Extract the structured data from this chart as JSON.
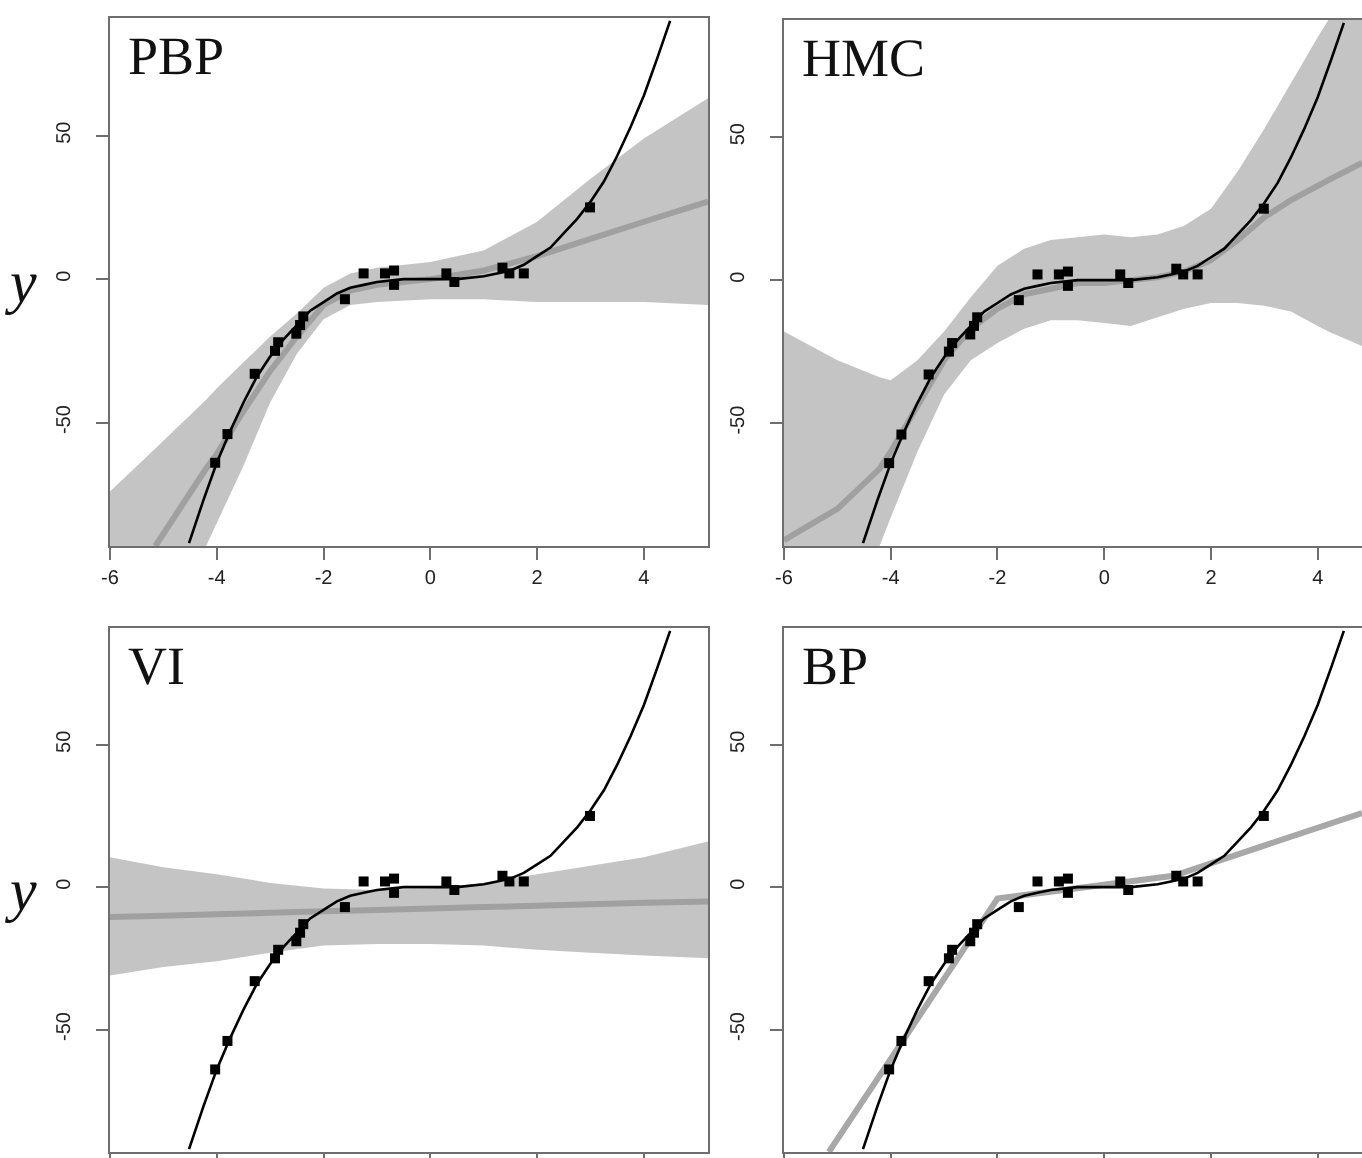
{
  "chart_data": [
    {
      "type": "line",
      "title": "PBP",
      "ylabel": "y",
      "xlim": [
        -6,
        5.2
      ],
      "ylim": [
        -93,
        91
      ],
      "xticks": [
        -6,
        -4,
        -2,
        0,
        2,
        4
      ],
      "yticks": [
        -50,
        0,
        50
      ],
      "series": [
        {
          "color": "#a0a0a0",
          "x": [
            -6,
            -5.15,
            -4.2,
            -4,
            -3.5,
            -3,
            -2.5,
            -2,
            -1.5,
            -1,
            0,
            1,
            2,
            3,
            4,
            5.2
          ],
          "values": [
            null,
            -93,
            -66,
            -61,
            -46,
            -32,
            -20,
            -9,
            -4,
            -2,
            0,
            3,
            8,
            14,
            20,
            27
          ],
          "upper": [
            -74,
            -59,
            -42,
            -38,
            -29,
            -20,
            -12,
            -3,
            2,
            4,
            6,
            10,
            20,
            35,
            49,
            63
          ],
          "lower": [
            -93,
            -93,
            -93,
            -85,
            -65,
            -43,
            -26,
            -14,
            -9,
            -8,
            -7,
            -7,
            -8,
            -8,
            -8,
            -9
          ]
        },
        {
          "color": "#000000",
          "x": [
            -4.52,
            -4.25,
            -4,
            -3.75,
            -3.5,
            -3.25,
            -3,
            -2.75,
            -2.5,
            -2.25,
            -2,
            -1.75,
            -1.5,
            -1.25,
            -1,
            -0.5,
            0,
            0.5,
            1,
            1.25,
            1.5,
            1.75,
            2,
            2.25,
            2.5,
            2.75,
            3,
            3.25,
            3.5,
            3.75,
            4,
            4.25,
            4.49
          ],
          "values": [
            -92,
            -77,
            -64,
            -53,
            -43,
            -34,
            -27,
            -21,
            -16,
            -11,
            -8,
            -5,
            -3,
            -2,
            -1,
            0,
            0,
            0,
            1,
            2,
            3,
            5,
            8,
            11,
            16,
            21,
            27,
            34,
            43,
            53,
            64,
            77,
            90
          ]
        },
        {
          "type": "scatter",
          "color": "#000000",
          "marker": "square",
          "x": [
            -4.03,
            -3.8,
            -3.29,
            -2.91,
            -2.85,
            -2.51,
            -2.44,
            -2.38,
            -1.6,
            -1.25,
            -0.85,
            -0.68,
            -0.68,
            0.3,
            0.45,
            1.35,
            1.48,
            1.75,
            2.99
          ],
          "values": [
            -64,
            -54,
            -33,
            -25,
            -22,
            -19,
            -16,
            -13,
            -7,
            2,
            2,
            3,
            -2,
            2,
            -1,
            4,
            2,
            2,
            25
          ]
        }
      ]
    },
    {
      "type": "line",
      "title": "HMC",
      "xlim": [
        -6,
        4.83
      ],
      "ylim": [
        -93,
        91
      ],
      "xticks": [
        -6,
        -4,
        -2,
        0,
        2,
        4
      ],
      "yticks": [
        -50,
        0,
        50
      ],
      "series": [
        {
          "color": "#a0a0a0",
          "x": [
            -6,
            -5,
            -4.21,
            -4,
            -3.5,
            -3,
            -2.5,
            -2,
            -1.5,
            -1,
            -0.5,
            0,
            0.5,
            1,
            1.5,
            2,
            2.5,
            3,
            3.5,
            4,
            4.2,
            4.83
          ],
          "values": [
            -91,
            -80,
            -66,
            -60,
            -44,
            -28,
            -17,
            -10,
            -5,
            -3,
            -1,
            -1,
            0,
            1,
            3,
            7,
            14,
            22,
            28,
            33,
            35,
            41
          ],
          "upper": [
            -18,
            -28,
            -34,
            -35,
            -28,
            -18,
            -6,
            5,
            11,
            14,
            15,
            16,
            15,
            16,
            19,
            25,
            38,
            53,
            69,
            85,
            91,
            91
          ],
          "lower": [
            -93,
            -93,
            -93,
            -83,
            -60,
            -40,
            -28,
            -22,
            -17,
            -14,
            -14,
            -15,
            -16,
            -13,
            -10,
            -8,
            -8,
            -9,
            -11,
            -16,
            -18,
            -23
          ]
        },
        {
          "color": "#000000",
          "x": [
            -4.52,
            -4.25,
            -4,
            -3.75,
            -3.5,
            -3.25,
            -3,
            -2.75,
            -2.5,
            -2.25,
            -2,
            -1.75,
            -1.5,
            -1.25,
            -1,
            -0.5,
            0,
            0.5,
            1,
            1.25,
            1.5,
            1.75,
            2,
            2.25,
            2.5,
            2.75,
            3,
            3.25,
            3.5,
            3.75,
            4,
            4.25,
            4.49
          ],
          "values": [
            -92,
            -77,
            -64,
            -53,
            -43,
            -34,
            -27,
            -21,
            -16,
            -11,
            -8,
            -5,
            -3,
            -2,
            -1,
            0,
            0,
            0,
            1,
            2,
            3,
            5,
            8,
            11,
            16,
            21,
            27,
            34,
            43,
            53,
            64,
            77,
            90
          ]
        },
        {
          "type": "scatter",
          "color": "#000000",
          "marker": "square",
          "x": [
            -4.03,
            -3.8,
            -3.29,
            -2.91,
            -2.85,
            -2.51,
            -2.44,
            -2.38,
            -1.6,
            -1.25,
            -0.85,
            -0.68,
            -0.68,
            0.3,
            0.45,
            1.35,
            1.48,
            1.75,
            2.99
          ],
          "values": [
            -64,
            -54,
            -33,
            -25,
            -22,
            -19,
            -16,
            -13,
            -7,
            2,
            2,
            3,
            -2,
            2,
            -1,
            4,
            2,
            2,
            25
          ]
        }
      ]
    },
    {
      "type": "line",
      "title": "VI",
      "ylabel": "y",
      "xlim": [
        -6,
        5.2
      ],
      "ylim": [
        -93,
        91
      ],
      "xticks": [
        {
          "value": -6,
          "label": null
        },
        {
          "value": -4,
          "label": null
        },
        {
          "value": -2,
          "label": null
        },
        {
          "value": 0,
          "label": null
        },
        {
          "value": 2,
          "label": null
        },
        {
          "value": 4,
          "label": null
        }
      ],
      "yticks": [
        -50,
        0,
        50
      ],
      "tick_labels": "y",
      "series": [
        {
          "color": "#a0a0a0",
          "x": [
            -6,
            -5,
            -4,
            -3,
            -2,
            -1,
            0,
            1,
            2,
            3,
            4,
            5.2
          ],
          "values": [
            -10.5,
            -10,
            -9.5,
            -9,
            -8.5,
            -8,
            -7.5,
            -7,
            -6.5,
            -6,
            -5.5,
            -5
          ],
          "upper": [
            10.5,
            7,
            4.5,
            1.5,
            -0.5,
            -1,
            -0.5,
            1.5,
            4.5,
            7.5,
            10.5,
            16
          ],
          "lower": [
            -31,
            -28,
            -26,
            -23,
            -20.5,
            -20,
            -20,
            -20.5,
            -22,
            -23,
            -24,
            -25
          ]
        },
        {
          "color": "#000000",
          "x": [
            -4.52,
            -4.25,
            -4,
            -3.75,
            -3.5,
            -3.25,
            -3,
            -2.75,
            -2.5,
            -2.25,
            -2,
            -1.75,
            -1.5,
            -1.25,
            -1,
            -0.5,
            0,
            0.5,
            1,
            1.25,
            1.5,
            1.75,
            2,
            2.25,
            2.5,
            2.75,
            3,
            3.25,
            3.5,
            3.75,
            4,
            4.25,
            4.49
          ],
          "values": [
            -92,
            -77,
            -64,
            -53,
            -43,
            -34,
            -27,
            -21,
            -16,
            -11,
            -8,
            -5,
            -3,
            -2,
            -1,
            0,
            0,
            0,
            1,
            2,
            3,
            5,
            8,
            11,
            16,
            21,
            27,
            34,
            43,
            53,
            64,
            77,
            90
          ]
        },
        {
          "type": "scatter",
          "color": "#000000",
          "marker": "square",
          "x": [
            -4.03,
            -3.8,
            -3.29,
            -2.91,
            -2.85,
            -2.51,
            -2.44,
            -2.38,
            -1.6,
            -1.25,
            -0.85,
            -0.68,
            -0.68,
            0.3,
            0.45,
            1.35,
            1.48,
            1.75,
            2.99
          ],
          "values": [
            -64,
            -54,
            -33,
            -25,
            -22,
            -19,
            -16,
            -13,
            -7,
            2,
            2,
            3,
            -2,
            2,
            -1,
            4,
            2,
            2,
            25
          ]
        }
      ]
    },
    {
      "type": "line",
      "title": "BP",
      "xlim": [
        -6,
        4.83
      ],
      "ylim": [
        -93,
        91
      ],
      "xticks": [
        {
          "value": -6,
          "label": null
        },
        {
          "value": -4,
          "label": null
        },
        {
          "value": -2,
          "label": null
        },
        {
          "value": 0,
          "label": null
        },
        {
          "value": 2,
          "label": null
        },
        {
          "value": 4,
          "label": null
        }
      ],
      "yticks": [
        -50,
        0,
        50
      ],
      "tick_labels": "y",
      "series": [
        {
          "color": "#a8a8a8",
          "x": [
            -5.16,
            -2,
            1.3,
            4.83
          ],
          "values": [
            -93,
            -4,
            4,
            26
          ]
        },
        {
          "color": "#000000",
          "x": [
            -4.52,
            -4.25,
            -4,
            -3.75,
            -3.5,
            -3.25,
            -3,
            -2.75,
            -2.5,
            -2.25,
            -2,
            -1.75,
            -1.5,
            -1.25,
            -1,
            -0.5,
            0,
            0.5,
            1,
            1.25,
            1.5,
            1.75,
            2,
            2.25,
            2.5,
            2.75,
            3,
            3.25,
            3.5,
            3.75,
            4,
            4.25,
            4.49
          ],
          "values": [
            -92,
            -77,
            -64,
            -53,
            -43,
            -34,
            -27,
            -21,
            -16,
            -11,
            -8,
            -5,
            -3,
            -2,
            -1,
            0,
            0,
            0,
            1,
            2,
            3,
            5,
            8,
            11,
            16,
            21,
            27,
            34,
            43,
            53,
            64,
            77,
            90
          ]
        },
        {
          "type": "scatter",
          "color": "#000000",
          "marker": "square",
          "x": [
            -4.03,
            -3.8,
            -3.29,
            -2.91,
            -2.85,
            -2.51,
            -2.44,
            -2.38,
            -1.6,
            -1.25,
            -0.85,
            -0.68,
            -0.68,
            0.3,
            0.45,
            1.35,
            1.48,
            1.75,
            2.99
          ],
          "values": [
            -64,
            -54,
            -33,
            -25,
            -22,
            -19,
            -16,
            -13,
            -7,
            2,
            2,
            3,
            -2,
            2,
            -1,
            4,
            2,
            2,
            25
          ]
        }
      ]
    }
  ]
}
